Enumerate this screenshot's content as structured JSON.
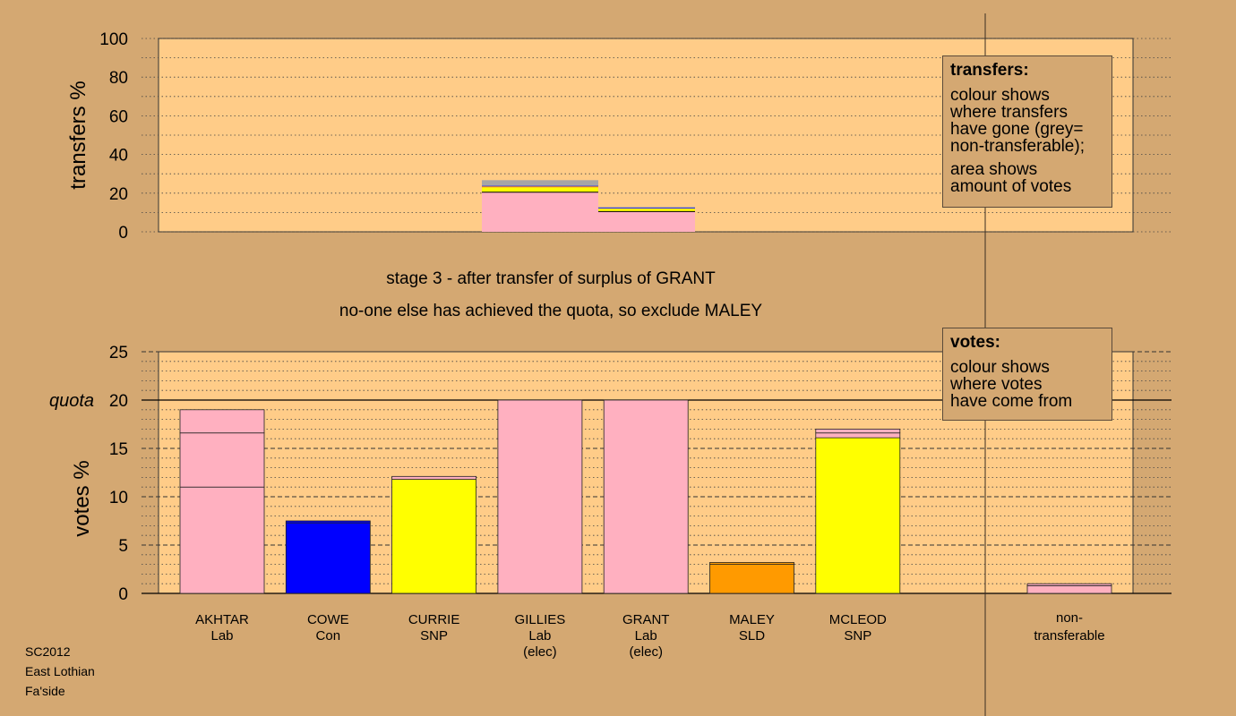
{
  "stage_caption": "stage 3 - after transfer of surplus of GRANT",
  "status_caption": "no-one else has achieved the quota, so exclude MALEY",
  "transfers_legend": {
    "title": "transfers:",
    "lines": [
      "colour shows",
      "where transfers",
      "have gone (grey=",
      "non-transferable);",
      "area shows",
      "amount of votes"
    ]
  },
  "votes_legend": {
    "title": "votes:",
    "lines": [
      "colour shows",
      "where votes",
      "have come from"
    ]
  },
  "footer": {
    "election": "SC2012",
    "council": "East Lothian",
    "ward": "Fa'side"
  },
  "colors": {
    "Lab": "#ffb0c0",
    "Con": "#0000ff",
    "SNP": "#ffff00",
    "SLD": "#ff9a00",
    "nontransferable": "#a6a6a6",
    "plot_bg": "#ffcc88",
    "page_bg": "#d4a872"
  },
  "chart_data": [
    {
      "type": "bar",
      "name": "transfers",
      "ylabel": "transfers %",
      "ylim": [
        0,
        100
      ],
      "yticks": [
        0,
        20,
        40,
        60,
        80,
        100
      ],
      "grid": "dotted every 10",
      "bars": [
        {
          "from": "GILLIES",
          "segments": [
            {
              "party": "Lab",
              "value": 20.5
            },
            {
              "party": "SNP",
              "value": 2.5
            },
            {
              "party": "SLD",
              "value": 0.5
            },
            {
              "party": "Con",
              "value": 0.3
            },
            {
              "party": "nontransferable",
              "value": 2.9
            }
          ]
        },
        {
          "from": "GRANT",
          "segments": [
            {
              "party": "Lab",
              "value": 10.5
            },
            {
              "party": "SNP",
              "value": 1.5
            },
            {
              "party": "Con",
              "value": 0.4
            },
            {
              "party": "nontransferable",
              "value": 0.5
            }
          ]
        }
      ]
    },
    {
      "type": "bar",
      "name": "votes",
      "ylabel": "votes %",
      "ylim": [
        0,
        25
      ],
      "yticks": [
        0,
        5,
        10,
        15,
        20,
        25
      ],
      "quota": 20,
      "quota_label": "quota",
      "grid": "dashed every 5, dotted every 1",
      "candidates": [
        {
          "name": "AKHTAR",
          "party": "Lab",
          "elected": "",
          "segments": [
            {
              "party": "Lab",
              "value": 11.0
            },
            {
              "party": "Lab",
              "value": 5.6
            },
            {
              "party": "Lab",
              "value": 2.4
            }
          ]
        },
        {
          "name": "COWE",
          "party": "Con",
          "elected": "",
          "segments": [
            {
              "party": "Con",
              "value": 7.3
            },
            {
              "party": "Con",
              "value": 0.2
            }
          ]
        },
        {
          "name": "CURRIE",
          "party": "SNP",
          "elected": "",
          "segments": [
            {
              "party": "SNP",
              "value": 11.8
            },
            {
              "party": "Lab",
              "value": 0.3
            }
          ]
        },
        {
          "name": "GILLIES",
          "party": "Lab",
          "elected": "(elec)",
          "segments": [
            {
              "party": "Lab",
              "value": 20.0
            }
          ]
        },
        {
          "name": "GRANT",
          "party": "Lab",
          "elected": "(elec)",
          "segments": [
            {
              "party": "Lab",
              "value": 20.0
            }
          ]
        },
        {
          "name": "MALEY",
          "party": "SLD",
          "elected": "",
          "segments": [
            {
              "party": "SLD",
              "value": 3.0
            },
            {
              "party": "SLD",
              "value": 0.2
            }
          ]
        },
        {
          "name": "MCLEOD",
          "party": "SNP",
          "elected": "",
          "segments": [
            {
              "party": "SNP",
              "value": 16.1
            },
            {
              "party": "Lab",
              "value": 0.5
            },
            {
              "party": "Lab",
              "value": 0.4
            }
          ]
        }
      ],
      "nontransferable": {
        "label1": "non-",
        "label2": "transferable",
        "segments": [
          {
            "party": "Lab",
            "value": 0.8
          },
          {
            "party": "Lab",
            "value": 0.2
          }
        ]
      }
    }
  ]
}
